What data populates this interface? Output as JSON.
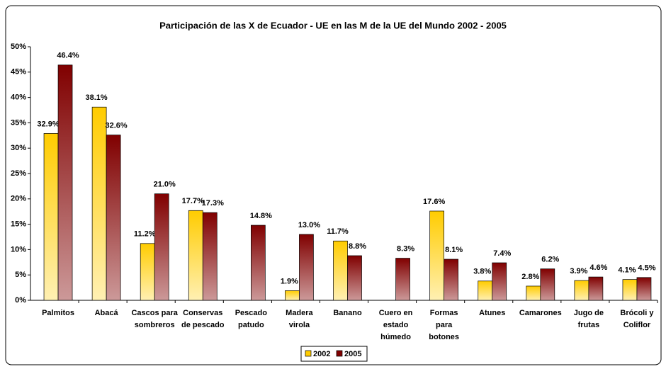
{
  "chart_data": {
    "type": "bar",
    "title": "Participación de las X de Ecuador - UE en las M de la UE del Mundo 2002 - 2005",
    "categories": [
      "Palmitos",
      "Abacá",
      "Cascos para sombreros",
      "Conservas de pescado",
      "Pescado patudo",
      "Madera virola",
      "Banano",
      "Cuero en estado húmedo",
      "Formas para botones",
      "Atunes",
      "Camarones",
      "Jugo de frutas",
      "Brócoli y Coliflor"
    ],
    "series": [
      {
        "name": "2002",
        "color": "#ffcc00",
        "values": [
          32.9,
          38.1,
          11.2,
          17.7,
          null,
          1.9,
          11.7,
          null,
          17.6,
          3.8,
          2.8,
          3.9,
          4.1
        ],
        "value_labels": [
          "32.9%",
          "38.1%",
          "11.2%",
          "17.7%",
          null,
          "1.9%",
          "11.7%",
          null,
          "17.6%",
          "3.8%",
          "2.8%",
          "3.9%",
          "4.1%"
        ]
      },
      {
        "name": "2005",
        "color": "#800000",
        "values": [
          46.4,
          32.6,
          21.0,
          17.3,
          14.8,
          13.0,
          8.8,
          8.3,
          8.1,
          7.4,
          6.2,
          4.6,
          4.5
        ],
        "value_labels": [
          "46.4%",
          "32.6%",
          "21.0%",
          "17.3%",
          "14.8%",
          "13.0%",
          "8.8%",
          "8.3%",
          "8.1%",
          "7.4%",
          "6.2%",
          "4.6%",
          "4.5%"
        ]
      }
    ],
    "ylim": [
      0,
      50
    ],
    "yticks": [
      {
        "value": 0,
        "label": "0%"
      },
      {
        "value": 5,
        "label": "5%"
      },
      {
        "value": 10,
        "label": "10%"
      },
      {
        "value": 15,
        "label": "15%"
      },
      {
        "value": 20,
        "label": "20%"
      },
      {
        "value": 25,
        "label": "25%"
      },
      {
        "value": 30,
        "label": "30%"
      },
      {
        "value": 35,
        "label": "35%"
      },
      {
        "value": 40,
        "label": "40%"
      },
      {
        "value": 45,
        "label": "45%"
      },
      {
        "value": 50,
        "label": "50%"
      }
    ],
    "legend": "bottom"
  }
}
